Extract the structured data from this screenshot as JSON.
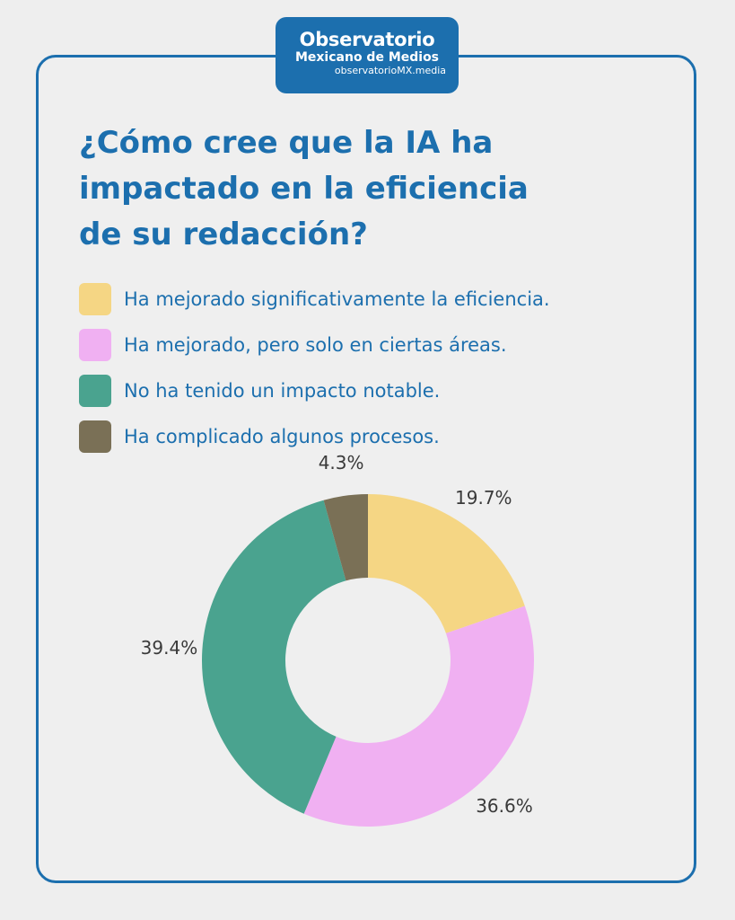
{
  "brand": {
    "title": "Observatorio",
    "subtitle": "Mexicano de Medios",
    "url": "observatorioMX.media",
    "color": "#1c6fae"
  },
  "chart_data": {
    "type": "pie",
    "title": "¿Cómo cree que la IA ha impactado en la eficiencia de su redacción?",
    "legend_position": "top",
    "categories": [
      "Ha mejorado significativamente la eficiencia.",
      "Ha mejorado, pero solo en ciertas áreas.",
      "No ha tenido un impacto notable.",
      "Ha complicado algunos procesos."
    ],
    "values": [
      19.7,
      36.6,
      39.4,
      4.3
    ],
    "labels": [
      "19.7%",
      "36.6%",
      "39.4%",
      "4.3%"
    ],
    "colors": [
      "#f5d684",
      "#f0b0f2",
      "#4aa38f",
      "#7a7056"
    ]
  }
}
